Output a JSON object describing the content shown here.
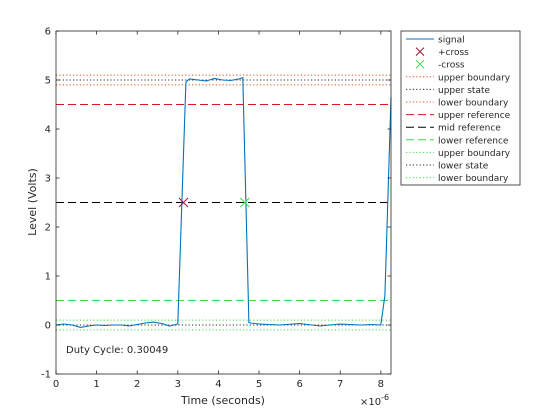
{
  "chart_data": {
    "type": "line",
    "xlabel": "Time (seconds)",
    "ylabel": "Level (Volts)",
    "x_exponent_label": "×10",
    "x_exponent_power": "-6",
    "xlim": [
      0,
      8.25
    ],
    "ylim": [
      -1,
      6
    ],
    "xticks": [
      "0",
      "1",
      "2",
      "3",
      "4",
      "5",
      "6",
      "7",
      "8"
    ],
    "yticks": [
      "-1",
      "0",
      "1",
      "2",
      "3",
      "4",
      "5",
      "6"
    ],
    "grid": false,
    "legend_position": "outside-right",
    "annotation": "Duty Cycle: 0.30049",
    "series": [
      {
        "name": "signal",
        "color": "#0072BD",
        "style": "solid",
        "x": [
          0,
          0.2,
          0.4,
          0.6,
          0.8,
          1.0,
          1.2,
          1.4,
          1.6,
          1.8,
          2.0,
          2.2,
          2.4,
          2.6,
          2.8,
          3.0,
          3.2,
          3.25,
          3.3,
          3.5,
          3.7,
          3.9,
          4.1,
          4.3,
          4.5,
          4.6,
          4.75,
          4.8,
          5.0,
          5.5,
          6.0,
          6.5,
          7.0,
          7.5,
          7.8,
          8.0,
          8.1,
          8.25
        ],
        "y": [
          0.0,
          0.02,
          0.0,
          -0.05,
          -0.02,
          0.0,
          -0.01,
          0.0,
          0.0,
          -0.02,
          0.01,
          0.04,
          0.06,
          0.03,
          -0.02,
          0.02,
          4.95,
          5.0,
          5.02,
          5.0,
          4.98,
          5.03,
          5.0,
          4.99,
          5.02,
          5.05,
          0.05,
          0.04,
          0.02,
          0.0,
          0.03,
          -0.02,
          0.02,
          0.0,
          0.01,
          0.0,
          0.6,
          4.65
        ]
      }
    ],
    "crossings": [
      {
        "name": "+cross",
        "x": 3.14,
        "y": 2.5,
        "color": "#A2142F"
      },
      {
        "name": "-cross",
        "x": 4.65,
        "y": 2.5,
        "color": "#3FD94A"
      }
    ],
    "reference_lines": [
      {
        "name": "upper boundary",
        "y": 5.1,
        "color": "#D95319",
        "style": "dotted"
      },
      {
        "name": "upper state",
        "y": 5.0,
        "color": "#262626",
        "style": "dotted"
      },
      {
        "name": "lower boundary",
        "y": 4.9,
        "color": "#D95319",
        "style": "dotted"
      },
      {
        "name": "upper reference",
        "y": 4.5,
        "color": "#D21A1A",
        "style": "dashed"
      },
      {
        "name": "mid reference",
        "y": 2.5,
        "color": "#000000",
        "style": "dashed"
      },
      {
        "name": "lower reference",
        "y": 0.5,
        "color": "#3FD94A",
        "style": "dashed"
      },
      {
        "name": "upper boundary",
        "y": 0.1,
        "color": "#3FD94A",
        "style": "dotted"
      },
      {
        "name": "lower state",
        "y": 0.0,
        "color": "#262626",
        "style": "dotted"
      },
      {
        "name": "lower boundary",
        "y": -0.1,
        "color": "#3FD94A",
        "style": "dotted"
      }
    ],
    "legend": [
      {
        "label": "signal",
        "kind": "line",
        "color": "#0072BD",
        "style": "solid"
      },
      {
        "label": "+cross",
        "kind": "marker",
        "color": "#A2142F"
      },
      {
        "label": "-cross",
        "kind": "marker",
        "color": "#3FD94A"
      },
      {
        "label": "upper boundary",
        "kind": "line",
        "color": "#D95319",
        "style": "dotted"
      },
      {
        "label": "upper state",
        "kind": "line",
        "color": "#262626",
        "style": "dotted"
      },
      {
        "label": "lower boundary",
        "kind": "line",
        "color": "#D95319",
        "style": "dotted"
      },
      {
        "label": "upper reference",
        "kind": "line",
        "color": "#D21A1A",
        "style": "dashed"
      },
      {
        "label": "mid reference",
        "kind": "line",
        "color": "#000000",
        "style": "dashed"
      },
      {
        "label": "lower reference",
        "kind": "line",
        "color": "#3FD94A",
        "style": "dashed"
      },
      {
        "label": "upper boundary",
        "kind": "line",
        "color": "#3FD94A",
        "style": "dotted"
      },
      {
        "label": "lower state",
        "kind": "line",
        "color": "#262626",
        "style": "dotted"
      },
      {
        "label": "lower boundary",
        "kind": "line",
        "color": "#3FD94A",
        "style": "dotted"
      }
    ]
  }
}
